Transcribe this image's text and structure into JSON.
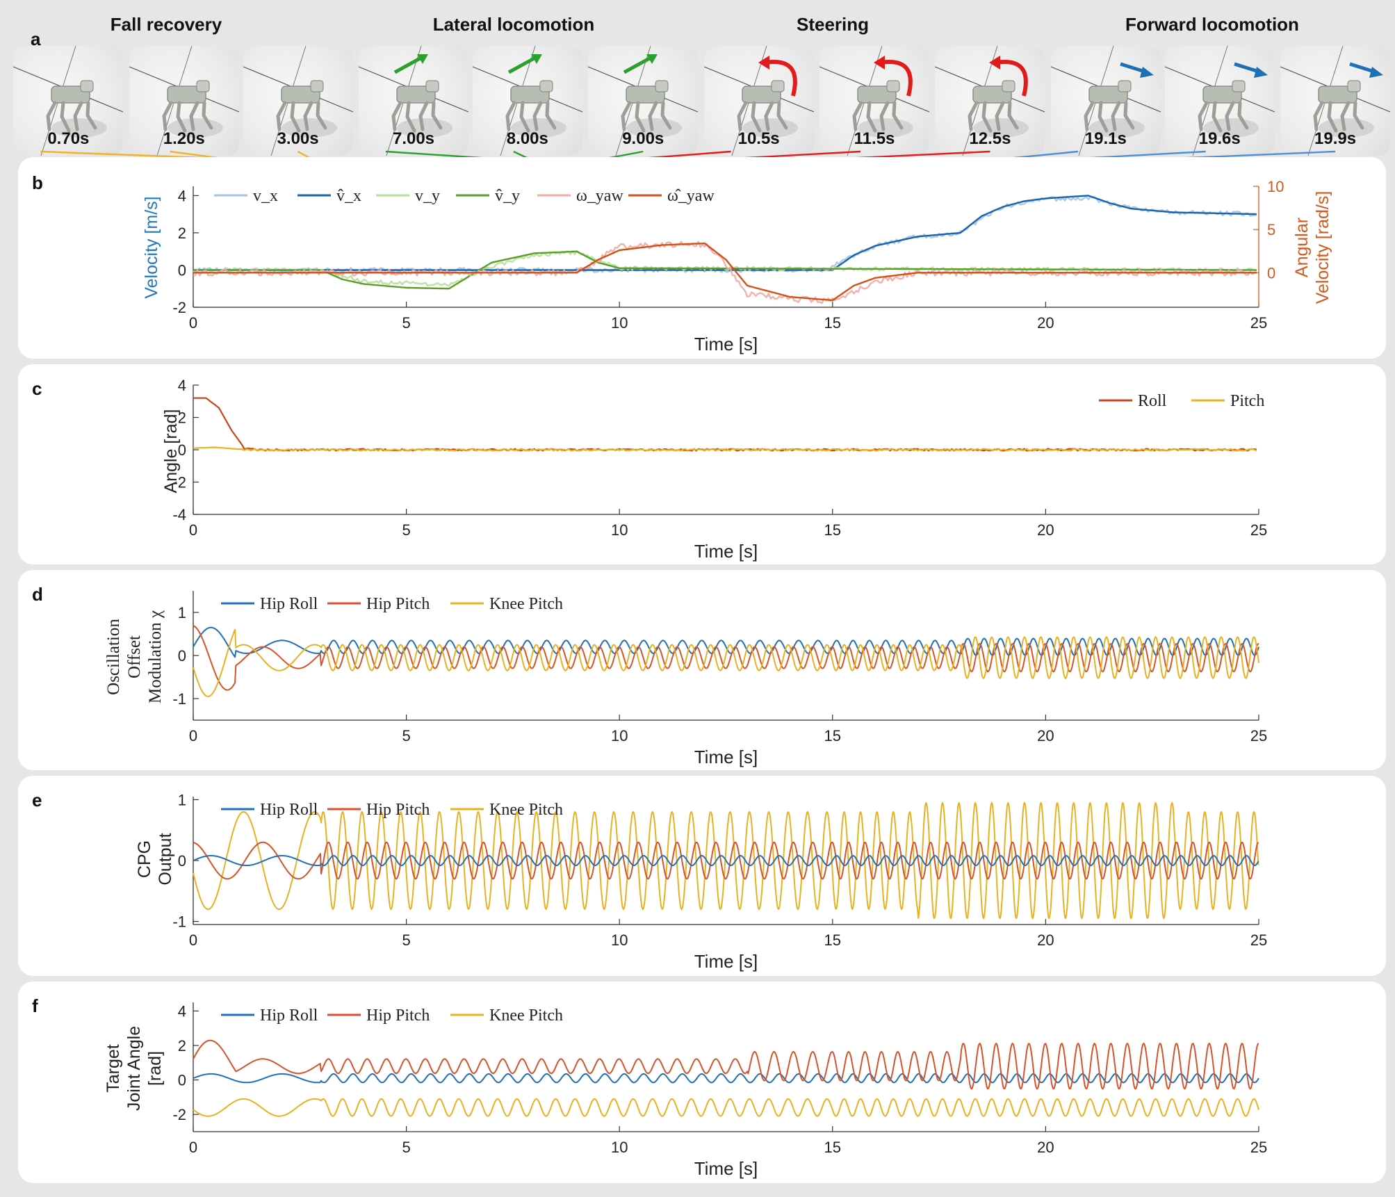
{
  "figure": {
    "panel_labels": [
      "a",
      "b",
      "c",
      "d",
      "e",
      "f"
    ],
    "group_titles": [
      "Fall recovery",
      "Lateral locomotion",
      "Steering",
      "Forward locomotion"
    ],
    "snapshots": [
      {
        "time": "0.70s",
        "group": "fall",
        "arrow": "none",
        "t": 0.7
      },
      {
        "time": "1.20s",
        "group": "fall",
        "arrow": "none",
        "t": 1.2
      },
      {
        "time": "3.00s",
        "group": "fall",
        "arrow": "none",
        "t": 3.0
      },
      {
        "time": "7.00s",
        "group": "lateral",
        "arrow": "green-straight",
        "t": 7.0
      },
      {
        "time": "8.00s",
        "group": "lateral",
        "arrow": "green-straight",
        "t": 8.0
      },
      {
        "time": "9.00s",
        "group": "lateral",
        "arrow": "green-straight",
        "t": 9.0
      },
      {
        "time": "10.5s",
        "group": "steering",
        "arrow": "red-curved",
        "t": 10.5
      },
      {
        "time": "11.5s",
        "group": "steering",
        "arrow": "red-curved",
        "t": 11.5
      },
      {
        "time": "12.5s",
        "group": "steering",
        "arrow": "red-curved",
        "t": 12.5
      },
      {
        "time": "19.1s",
        "group": "forward",
        "arrow": "blue-straight",
        "t": 19.1
      },
      {
        "time": "19.6s",
        "group": "forward",
        "arrow": "blue-straight",
        "t": 19.6
      },
      {
        "time": "19.9s",
        "group": "forward",
        "arrow": "blue-straight",
        "t": 19.9
      }
    ],
    "group_colors": {
      "fall": "#f0b323",
      "lateral": "#2ca02c",
      "steering": "#e31a1c",
      "forward": "#4a90d9"
    }
  },
  "colors": {
    "blue_light": "#9ec5e8",
    "blue": "#1c62a8",
    "green_light": "#b9dd9a",
    "green": "#5a9e28",
    "red_light": "#f2aaa0",
    "red": "#d2501a",
    "hip_roll": "#1f6fb4",
    "hip_pitch": "#d5522a",
    "knee_pitch": "#e8b121",
    "roll": "#c8441c",
    "pitch": "#e8b121",
    "axis": "#333333",
    "ylabel_blue": "#1f77c4",
    "ylabel_orange": "#d15a1c"
  },
  "chart_data": [
    {
      "id": "b",
      "type": "line",
      "xlabel": "Time [s]",
      "ylabel": "Velocity [m/s]",
      "y2label_line1": "Angular",
      "y2label_line2": "Velocity",
      "y2label_line3": "[rad/s]",
      "xlim": [
        0,
        25
      ],
      "ylim": [
        -2,
        4.5
      ],
      "y2lim": [
        -4,
        10
      ],
      "xticks": [
        0,
        5,
        10,
        15,
        20,
        25
      ],
      "yticks": [
        -2,
        0,
        2,
        4
      ],
      "y2ticks": [
        0,
        5,
        10
      ],
      "legend": [
        "v_x",
        "v̂_x",
        "v_y",
        "v̂_y",
        "ω_yaw",
        "ω̂_yaw"
      ],
      "series": [
        {
          "name": "v_x (measured)",
          "axis": "left",
          "t": [
            0,
            14.9,
            15,
            16,
            17,
            18,
            18.5,
            19,
            20,
            21,
            22,
            23,
            25
          ],
          "v": [
            0,
            0,
            0.2,
            1.3,
            1.8,
            2.0,
            2.8,
            3.4,
            3.8,
            3.9,
            3.3,
            3.1,
            3.0
          ]
        },
        {
          "name": "v̂_x (reference)",
          "axis": "left",
          "t": [
            0,
            15,
            15.5,
            16,
            17,
            18,
            18.5,
            19,
            19.5,
            20,
            21,
            21.5,
            22,
            23,
            25
          ],
          "v": [
            0,
            0,
            0.8,
            1.3,
            1.8,
            2.0,
            2.9,
            3.4,
            3.7,
            3.85,
            4.0,
            3.6,
            3.3,
            3.1,
            3.0
          ]
        },
        {
          "name": "v_y (measured)",
          "axis": "left",
          "t": [
            0,
            3,
            4,
            6,
            7,
            8,
            9,
            10,
            25
          ],
          "v": [
            0,
            0,
            -0.6,
            -0.8,
            0.2,
            0.8,
            0.95,
            0.1,
            0
          ]
        },
        {
          "name": "v̂_y (reference)",
          "axis": "left",
          "t": [
            0,
            3,
            3.5,
            4,
            5,
            6,
            6.5,
            7,
            8,
            9,
            9.5,
            10,
            25
          ],
          "v": [
            0,
            0,
            -0.5,
            -0.75,
            -0.95,
            -1.0,
            -0.3,
            0.4,
            0.9,
            1.0,
            0.4,
            0.1,
            0
          ]
        },
        {
          "name": "ω_yaw (measured)",
          "axis": "right",
          "t": [
            0,
            9,
            9.5,
            10,
            11,
            12,
            12.5,
            13,
            14,
            15,
            16,
            17,
            25
          ],
          "v": [
            0,
            0,
            1.5,
            3.0,
            3.2,
            3.3,
            1.0,
            -2.5,
            -3.0,
            -3.3,
            -1.0,
            0,
            0
          ]
        },
        {
          "name": "ω̂_yaw (reference)",
          "axis": "right",
          "t": [
            0,
            9,
            9.5,
            10,
            11,
            12,
            12.5,
            13,
            14,
            15,
            15.5,
            16,
            17,
            25
          ],
          "v": [
            0,
            0,
            1.5,
            2.6,
            3.2,
            3.4,
            1.5,
            -1.5,
            -2.8,
            -3.2,
            -1.5,
            -0.6,
            0,
            0
          ]
        }
      ]
    },
    {
      "id": "c",
      "type": "line",
      "xlabel": "Time [s]",
      "ylabel": "Angle [rad]",
      "xlim": [
        0,
        25
      ],
      "ylim": [
        -4,
        4
      ],
      "xticks": [
        0,
        5,
        10,
        15,
        20,
        25
      ],
      "yticks": [
        -4,
        -2,
        0,
        2,
        4
      ],
      "legend": [
        "Roll",
        "Pitch"
      ],
      "series": [
        {
          "name": "Roll",
          "t": [
            0,
            0.3,
            0.6,
            0.9,
            1.2,
            1.5,
            25
          ],
          "v": [
            3.2,
            3.2,
            2.6,
            1.2,
            0.1,
            0,
            0
          ]
        },
        {
          "name": "Pitch",
          "t": [
            0,
            0.5,
            1.0,
            1.5,
            25
          ],
          "v": [
            0.1,
            0.15,
            0.05,
            0,
            0
          ]
        }
      ]
    },
    {
      "id": "d",
      "type": "line",
      "xlabel": "Time [s]",
      "ylabel_line1": "Oscillation",
      "ylabel_line2": "Offset",
      "ylabel_line3": "Modulation χ",
      "xlim": [
        0,
        25
      ],
      "ylim": [
        -1.5,
        1.5
      ],
      "xticks": [
        0,
        5,
        10,
        15,
        20,
        25
      ],
      "yticks": [
        -1,
        0,
        1
      ],
      "legend": [
        "Hip Roll",
        "Hip Pitch",
        "Knee Pitch"
      ],
      "series": [
        {
          "name": "Hip Roll",
          "offset": 0.2,
          "amplitude": 0.15
        },
        {
          "name": "Hip Pitch",
          "offset": -0.05,
          "amplitude": 0.25
        },
        {
          "name": "Knee Pitch",
          "offset": -0.05,
          "amplitude": 0.3
        }
      ]
    },
    {
      "id": "e",
      "type": "line",
      "xlabel": "Time [s]",
      "ylabel_line1": "CPG",
      "ylabel_line2": "Output",
      "xlim": [
        0,
        25
      ],
      "ylim": [
        -1,
        1
      ],
      "xticks": [
        0,
        5,
        10,
        15,
        20,
        25
      ],
      "yticks": [
        -1,
        0,
        1
      ],
      "legend": [
        "Hip Roll",
        "Hip Pitch",
        "Knee Pitch"
      ],
      "series": [
        {
          "name": "Hip Roll",
          "amplitude": 0.08
        },
        {
          "name": "Hip Pitch",
          "amplitude": 0.3
        },
        {
          "name": "Knee Pitch",
          "amplitude": 0.8
        }
      ]
    },
    {
      "id": "f",
      "type": "line",
      "xlabel": "Time [s]",
      "ylabel_line1": "Target",
      "ylabel_line2": "Joint Angle",
      "ylabel_line3": "[rad]",
      "xlim": [
        0,
        25
      ],
      "ylim": [
        -3,
        4.5
      ],
      "xticks": [
        0,
        5,
        10,
        15,
        20,
        25
      ],
      "yticks": [
        -2,
        0,
        2,
        4
      ],
      "legend": [
        "Hip Roll",
        "Hip Pitch",
        "Knee Pitch"
      ],
      "series": [
        {
          "name": "Hip Roll",
          "offset": 0.1,
          "amplitude": 0.25
        },
        {
          "name": "Hip Pitch",
          "offset": 0.8,
          "amplitude": 1.2
        },
        {
          "name": "Knee Pitch",
          "offset": -1.6,
          "amplitude": 0.5
        }
      ]
    }
  ]
}
